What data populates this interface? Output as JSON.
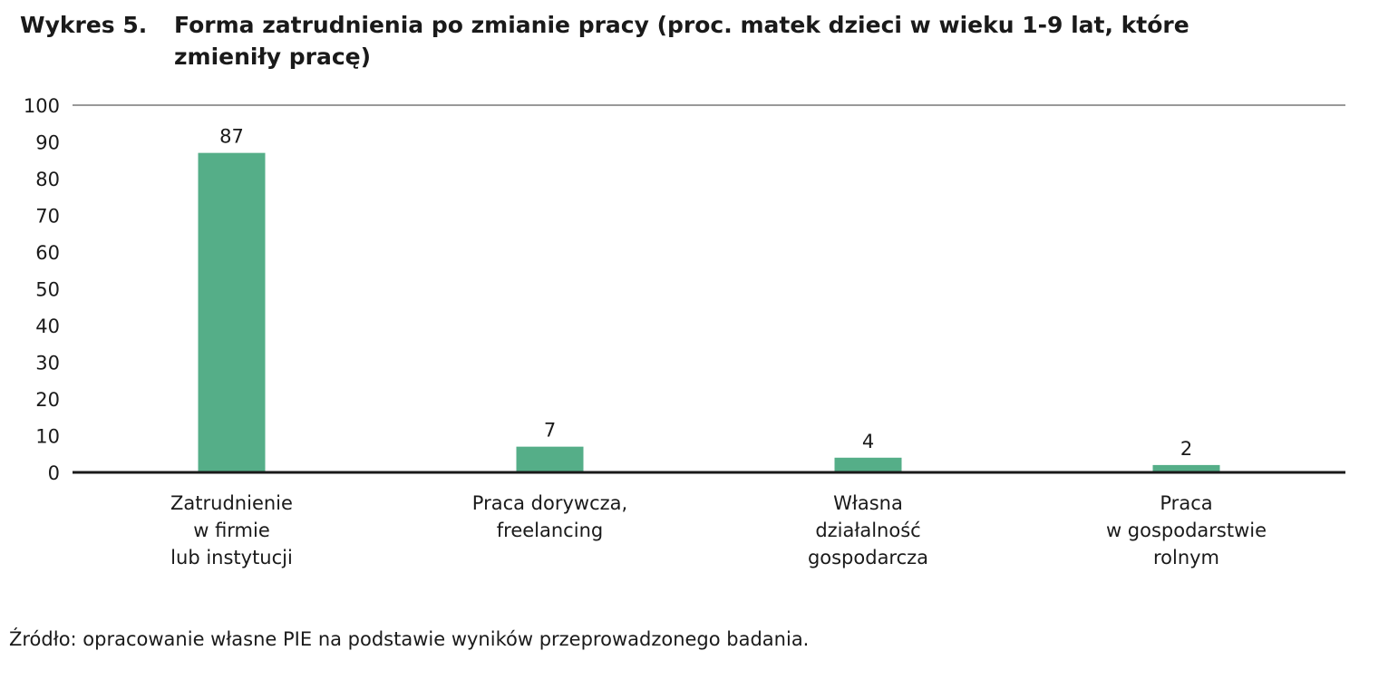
{
  "figure": {
    "label": "Wykres 5.",
    "title": "Forma zatrudnienia po zmianie pracy (proc. matek dzieci w wieku 1-9 lat, które zmieniły pracę)",
    "source": "Źródło: opracowanie własne PIE na podstawie wyników przeprowadzonego badania."
  },
  "chart_data": {
    "type": "bar",
    "categories": [
      [
        "Zatrudnienie",
        "w firmie",
        "lub instytucji"
      ],
      [
        "Praca dorywcza,",
        "freelancing"
      ],
      [
        "Własna",
        "działalność",
        "gospodarcza"
      ],
      [
        "Praca",
        "w gospodarstwie",
        "rolnym"
      ]
    ],
    "values": [
      87,
      7,
      4,
      2
    ],
    "data_labels": [
      "87",
      "7",
      "4",
      "2"
    ],
    "ylim": [
      0,
      100
    ],
    "yticks": [
      0,
      10,
      20,
      30,
      40,
      50,
      60,
      70,
      80,
      90,
      100
    ],
    "xlabel": "",
    "ylabel": "",
    "grid": false,
    "bar_color": "#55ae88",
    "axis_color": "#1a1a1a"
  }
}
